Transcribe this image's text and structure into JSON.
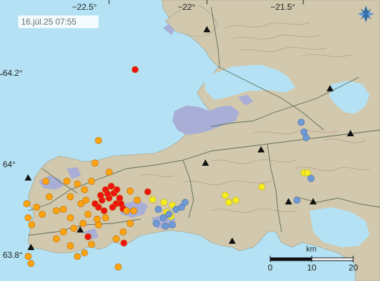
{
  "map": {
    "timestamp": "16.júl.25  07:55",
    "longitude_labels": [
      "−22.5°",
      "−22°",
      "−21.5°"
    ],
    "latitude_labels": [
      "64.2°",
      "64°",
      "63.8°"
    ],
    "scale": {
      "unit": "km",
      "ticks": [
        "0",
        "10",
        "20"
      ]
    },
    "colors": {
      "sea": "#b4e2f4",
      "land": "#d2c8ad",
      "lava": "#a9aed6",
      "contour": "#b0917a",
      "road": "#5e6b5a",
      "quake_recent": "#f21111",
      "quake_hours": "#ffa310",
      "quake_day": "#f5ed22",
      "quake_older": "#6e9ad5"
    },
    "legend_note": "Earthquake color = time since event (red newest, then orange, yellow, blue)",
    "compass_icon": "compass-rose-icon",
    "station_icon": "triangle-station-icon"
  }
}
